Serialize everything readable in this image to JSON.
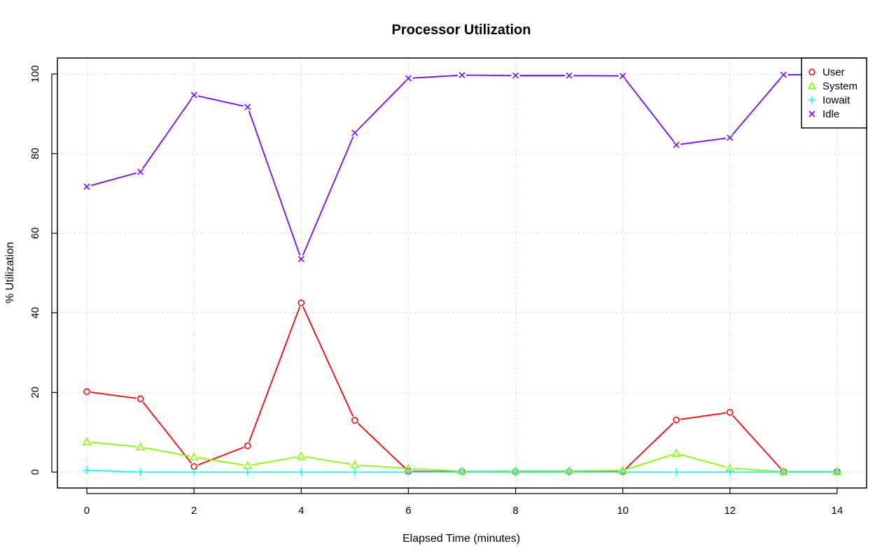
{
  "chart_data": {
    "type": "line",
    "title": "Processor Utilization",
    "xlabel": "Elapsed Time (minutes)",
    "ylabel": "% Utilization",
    "x": [
      0,
      1,
      2,
      3,
      4,
      5,
      6,
      7,
      8,
      9,
      10,
      11,
      12,
      13,
      14
    ],
    "xlim": [
      -0.55,
      14.55
    ],
    "ylim": [
      -4,
      104
    ],
    "x_ticks": [
      0,
      2,
      4,
      6,
      8,
      10,
      12,
      14
    ],
    "y_ticks": [
      0,
      20,
      40,
      60,
      80,
      100
    ],
    "grid": true,
    "legend_position": "top-right",
    "series": [
      {
        "name": "User",
        "color": "#ff0000",
        "marker": "circle",
        "values": [
          20.2,
          18.4,
          1.4,
          6.6,
          42.5,
          13.0,
          0.2,
          0.1,
          0.1,
          0.1,
          0.1,
          13.1,
          15.0,
          0.1,
          0.1
        ]
      },
      {
        "name": "System",
        "color": "#80ff00",
        "marker": "triangle",
        "values": [
          7.6,
          6.3,
          3.8,
          1.6,
          4.0,
          1.8,
          0.9,
          0.2,
          0.3,
          0.3,
          0.4,
          4.7,
          1.0,
          0.1,
          0.1
        ]
      },
      {
        "name": "Iowait",
        "color": "#00ffff",
        "marker": "plus",
        "values": [
          0.5,
          0.0,
          0.0,
          0.0,
          0.0,
          0.0,
          0.0,
          0.0,
          0.0,
          0.0,
          0.0,
          0.0,
          0.0,
          0.0,
          0.0
        ]
      },
      {
        "name": "Idle",
        "color": "#8000ff",
        "marker": "cross",
        "values": [
          71.7,
          75.4,
          94.7,
          91.7,
          53.5,
          85.2,
          98.9,
          99.7,
          99.6,
          99.6,
          99.5,
          82.2,
          84.0,
          99.8,
          99.8
        ]
      }
    ]
  }
}
